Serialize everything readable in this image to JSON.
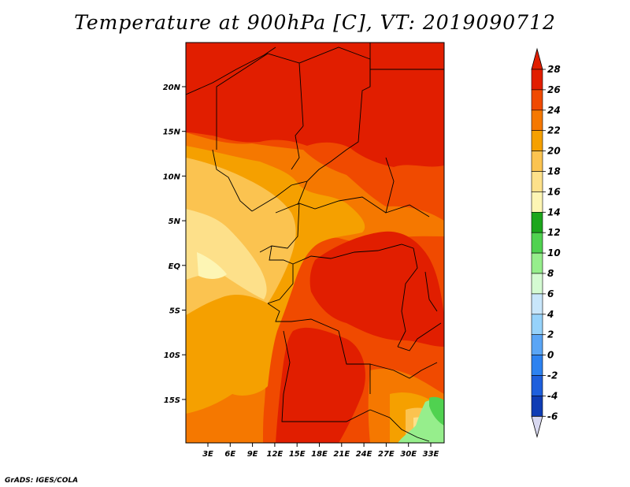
{
  "title": "Temperature at 900hPa [C], VT: 2019090712",
  "credit": "GrADS: IGES/COLA",
  "map": {
    "lat_labels": [
      "20N",
      "15N",
      "10N",
      "5N",
      "EQ",
      "5S",
      "10S",
      "15S"
    ],
    "lon_labels": [
      "3E",
      "6E",
      "9E",
      "12E",
      "15E",
      "18E",
      "21E",
      "24E",
      "27E",
      "30E",
      "33E"
    ]
  },
  "colorbar": {
    "levels": [
      "28",
      "26",
      "24",
      "22",
      "20",
      "18",
      "16",
      "14",
      "12",
      "10",
      "8",
      "6",
      "4",
      "2",
      "0",
      "-2",
      "-4",
      "-6"
    ],
    "colors": [
      "#e11e00",
      "#f04a00",
      "#f57800",
      "#f5a000",
      "#fbc350",
      "#fde08a",
      "#fdf5b4",
      "#1ca61c",
      "#50d250",
      "#96ee8c",
      "#d4fad2",
      "#c8e6fa",
      "#96d2fa",
      "#5aa5f5",
      "#2d82f0",
      "#1e5fdc",
      "#0f3cb4",
      "#000a78"
    ]
  }
}
